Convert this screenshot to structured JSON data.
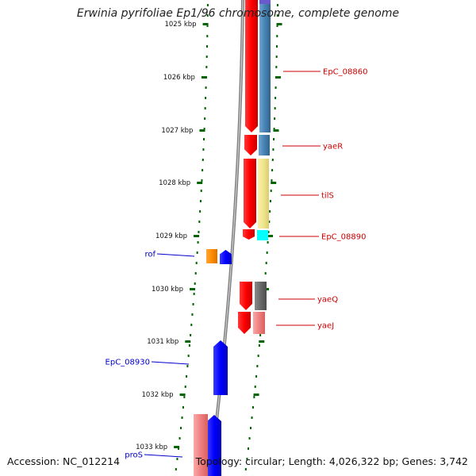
{
  "header": {
    "title": "Erwinia pyrifoliae Ep1/96 chromosome, complete genome"
  },
  "footer": {
    "accession": "Accession: NC_012214",
    "summary": "Topology: circular; Length: 4,026,322 bp; Genes: 3,742"
  },
  "scale_labels": [
    "1025 kbp",
    "1026 kbp",
    "1027 kbp",
    "1028 kbp",
    "1029 kbp",
    "1030 kbp",
    "1031 kbp",
    "1032 kbp",
    "1033 kbp"
  ],
  "gene_labels": {
    "right": [
      "EpC_08860",
      "yaeR",
      "tilS",
      "EpC_08890",
      "yaeQ",
      "yaeJ"
    ],
    "left": [
      "rof",
      "EpC_08930",
      "proS"
    ]
  },
  "colors": {
    "gene_red": "#ff0000",
    "gene_blue": "#0000ff",
    "gene_orange": "#ff8c00",
    "gene_pink": "#f08080",
    "cog_steelblue": "#4682b4",
    "cog_khaki": "#f0e68c",
    "cog_cyan": "#00ffff",
    "cog_gray": "#696969",
    "tick_green": "#006400",
    "label_red": "#cc0000",
    "label_blue": "#0000cc",
    "backbone_gray": "#808080"
  }
}
